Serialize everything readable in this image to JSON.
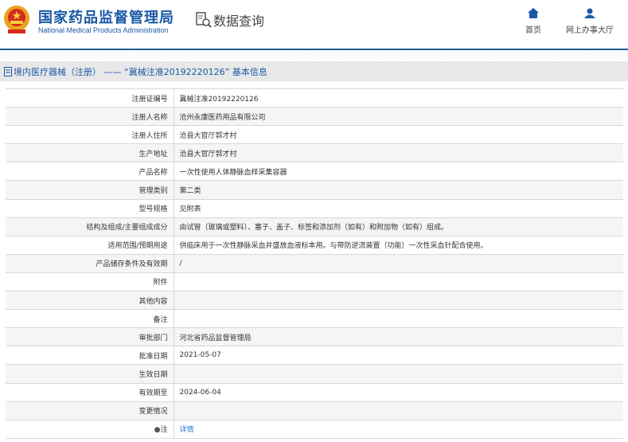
{
  "header": {
    "org_cn": "国家药品监督管理局",
    "org_en": "National Medical Products Administration",
    "query": "数据查询",
    "nav": [
      {
        "label": "首页",
        "icon": "home-icon"
      },
      {
        "label": "网上办事大厅",
        "icon": "user-icon"
      }
    ]
  },
  "title": "境内医疗器械（注册） —— “冀械注准20192220126” 基本信息",
  "rows": [
    {
      "label": "注册证编号",
      "value": "冀械注准20192220126"
    },
    {
      "label": "注册人名称",
      "value": "沧州永康医药用品有限公司"
    },
    {
      "label": "注册人住所",
      "value": "沧县大官厅郭才村"
    },
    {
      "label": "生产地址",
      "value": "沧县大官厅郭才村"
    },
    {
      "label": "产品名称",
      "value": "一次性使用人体静脉血样采集容器"
    },
    {
      "label": "管理类别",
      "value": "第二类"
    },
    {
      "label": "型号规格",
      "value": "见附表"
    },
    {
      "label": "结构及组成/主要组成成分",
      "value": "由试管（玻璃或塑料）、塞子、盖子、标签和添加剂（如有）和附加物（如有）组成。"
    },
    {
      "label": "适用范围/预期用途",
      "value": "供临床用于一次性静脉采血并盛放血液标本用。与带防逆流装置（功能）一次性采血针配合使用。"
    },
    {
      "label": "产品储存条件及有效期",
      "value": "/"
    },
    {
      "label": "附件",
      "value": ""
    },
    {
      "label": "其他内容",
      "value": ""
    },
    {
      "label": "备注",
      "value": ""
    },
    {
      "label": "审批部门",
      "value": "河北省药品监督管理局"
    },
    {
      "label": "批准日期",
      "value": "2021-05-07"
    },
    {
      "label": "生效日期",
      "value": ""
    },
    {
      "label": "有效期至",
      "value": "2024-06-04"
    },
    {
      "label": "变更情况",
      "value": ""
    },
    {
      "label": "注",
      "value": "详情"
    }
  ]
}
